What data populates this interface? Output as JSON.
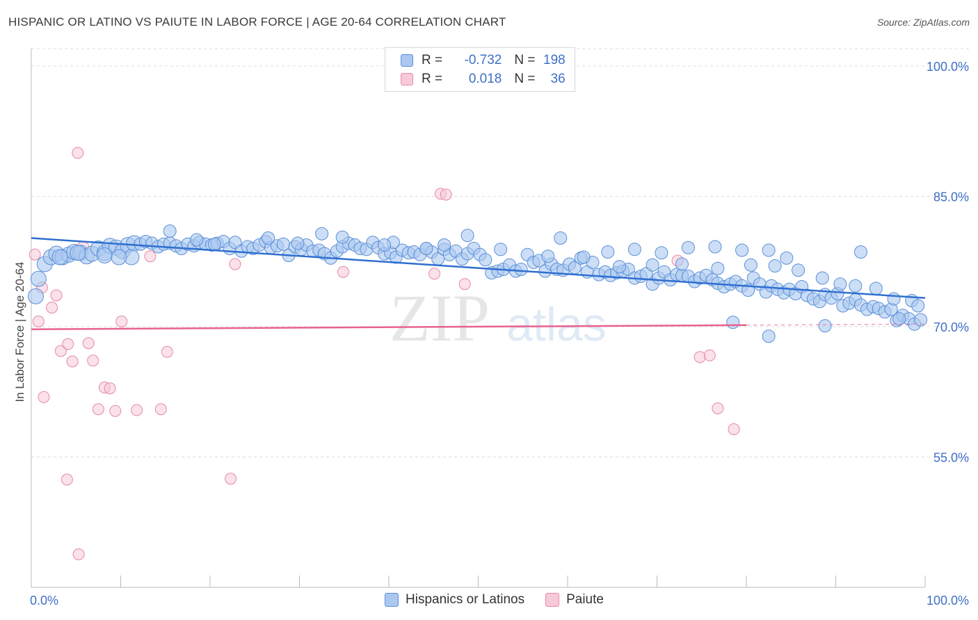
{
  "title": "HISPANIC OR LATINO VS PAIUTE IN LABOR FORCE | AGE 20-64 CORRELATION CHART",
  "source": "Source: ZipAtlas.com",
  "watermark": {
    "zip": "ZIP",
    "atlas": "atlas"
  },
  "legend": {
    "rows": [
      {
        "r_label": "R = ",
        "r_value": "-0.732",
        "n_label": "N = ",
        "n_value": "198"
      },
      {
        "r_label": "R = ",
        "r_value": "0.018",
        "n_label": "N = ",
        "n_value": "36"
      }
    ]
  },
  "colors": {
    "blue_fill": "#aac8f0",
    "blue_stroke": "#5b8fd8",
    "blue_line": "#2f6fd0",
    "pink_fill": "#f8c9d8",
    "pink_stroke": "#e48aa8",
    "pink_line": "#e8628e",
    "tick_label": "#3f6fc7",
    "grid": "#dddddd"
  },
  "chart_data": {
    "type": "scatter",
    "title": "HISPANIC OR LATINO VS PAIUTE IN LABOR FORCE | AGE 20-64 CORRELATION CHART",
    "xlabel": "",
    "ylabel": "In Labor Force | Age 20-64",
    "xlim": [
      0,
      100
    ],
    "ylim": [
      40,
      102
    ],
    "x_tick_labels": [
      "0.0%",
      "100.0%"
    ],
    "y_ticks": [
      55,
      70,
      85,
      100
    ],
    "y_tick_labels": [
      "55.0%",
      "70.0%",
      "85.0%",
      "100.0%"
    ],
    "series": [
      {
        "name": "Hispanics or Latinos",
        "r": -0.732,
        "n": 198,
        "trend": {
          "x": [
            0,
            100
          ],
          "y": [
            80.2,
            73.3
          ]
        },
        "points": [
          [
            0.5,
            73.5
          ],
          [
            0.8,
            75.5
          ],
          [
            1.5,
            77.2
          ],
          [
            2.2,
            78.0
          ],
          [
            2.8,
            78.4
          ],
          [
            3.5,
            78.0
          ],
          [
            4.2,
            78.3
          ],
          [
            4.8,
            78.6
          ],
          [
            5.5,
            78.5
          ],
          [
            6.2,
            78.1
          ],
          [
            6.8,
            78.4
          ],
          [
            7.5,
            79.0
          ],
          [
            8.2,
            78.5
          ],
          [
            8.8,
            79.3
          ],
          [
            9.5,
            79.1
          ],
          [
            10.2,
            78.7
          ],
          [
            10.8,
            79.4
          ],
          [
            11.5,
            79.6
          ],
          [
            12.2,
            79.5
          ],
          [
            12.8,
            79.8
          ],
          [
            13.5,
            79.6
          ],
          [
            14.2,
            79.2
          ],
          [
            14.8,
            79.5
          ],
          [
            15.5,
            79.6
          ],
          [
            16.2,
            79.3
          ],
          [
            16.8,
            79.0
          ],
          [
            17.5,
            79.5
          ],
          [
            18.2,
            79.3
          ],
          [
            18.8,
            79.7
          ],
          [
            19.5,
            79.5
          ],
          [
            20.2,
            79.4
          ],
          [
            20.8,
            79.6
          ],
          [
            21.5,
            79.8
          ],
          [
            22.2,
            79.0
          ],
          [
            22.8,
            79.7
          ],
          [
            23.5,
            78.7
          ],
          [
            24.2,
            79.2
          ],
          [
            24.8,
            79.0
          ],
          [
            25.5,
            79.4
          ],
          [
            26.2,
            79.8
          ],
          [
            26.8,
            79.1
          ],
          [
            27.5,
            79.3
          ],
          [
            28.2,
            79.5
          ],
          [
            28.8,
            78.2
          ],
          [
            29.5,
            79.2
          ],
          [
            30.2,
            78.9
          ],
          [
            30.8,
            79.4
          ],
          [
            31.5,
            78.7
          ],
          [
            32.2,
            78.8
          ],
          [
            32.8,
            78.4
          ],
          [
            33.5,
            77.9
          ],
          [
            34.2,
            78.7
          ],
          [
            34.8,
            79.2
          ],
          [
            35.5,
            79.6
          ],
          [
            36.2,
            79.4
          ],
          [
            36.8,
            79.0
          ],
          [
            37.5,
            78.9
          ],
          [
            38.2,
            79.7
          ],
          [
            38.8,
            79.1
          ],
          [
            39.5,
            78.4
          ],
          [
            40.2,
            78.5
          ],
          [
            40.8,
            78.0
          ],
          [
            41.5,
            78.8
          ],
          [
            42.2,
            78.5
          ],
          [
            42.8,
            78.6
          ],
          [
            43.5,
            78.3
          ],
          [
            44.2,
            79.0
          ],
          [
            44.8,
            78.6
          ],
          [
            45.5,
            77.8
          ],
          [
            46.2,
            78.9
          ],
          [
            46.8,
            78.3
          ],
          [
            47.5,
            78.7
          ],
          [
            48.2,
            77.8
          ],
          [
            48.8,
            78.4
          ],
          [
            49.5,
            79.0
          ],
          [
            50.2,
            78.3
          ],
          [
            50.8,
            77.7
          ],
          [
            51.5,
            76.2
          ],
          [
            52.2,
            76.4
          ],
          [
            52.8,
            76.6
          ],
          [
            53.5,
            77.1
          ],
          [
            54.2,
            76.4
          ],
          [
            54.8,
            76.6
          ],
          [
            55.5,
            78.3
          ],
          [
            56.2,
            77.4
          ],
          [
            56.8,
            77.6
          ],
          [
            57.5,
            76.4
          ],
          [
            58.2,
            77.2
          ],
          [
            58.8,
            76.6
          ],
          [
            59.5,
            76.5
          ],
          [
            60.2,
            77.2
          ],
          [
            60.8,
            76.8
          ],
          [
            61.5,
            77.9
          ],
          [
            62.2,
            76.3
          ],
          [
            62.8,
            77.4
          ],
          [
            63.5,
            76.0
          ],
          [
            64.2,
            76.3
          ],
          [
            64.8,
            75.9
          ],
          [
            65.5,
            76.2
          ],
          [
            66.2,
            76.4
          ],
          [
            66.8,
            76.6
          ],
          [
            67.5,
            75.6
          ],
          [
            68.2,
            75.8
          ],
          [
            68.8,
            76.1
          ],
          [
            69.5,
            74.9
          ],
          [
            70.2,
            75.6
          ],
          [
            70.8,
            76.3
          ],
          [
            71.5,
            75.4
          ],
          [
            72.2,
            76.0
          ],
          [
            72.8,
            75.9
          ],
          [
            73.5,
            75.8
          ],
          [
            74.2,
            75.2
          ],
          [
            74.8,
            75.6
          ],
          [
            75.5,
            75.9
          ],
          [
            76.2,
            75.4
          ],
          [
            76.8,
            75.0
          ],
          [
            77.5,
            74.6
          ],
          [
            78.2,
            74.9
          ],
          [
            78.8,
            75.2
          ],
          [
            79.5,
            74.7
          ],
          [
            80.2,
            74.2
          ],
          [
            80.8,
            75.6
          ],
          [
            81.5,
            74.9
          ],
          [
            82.2,
            74.0
          ],
          [
            82.8,
            74.7
          ],
          [
            83.5,
            74.3
          ],
          [
            84.2,
            73.9
          ],
          [
            84.8,
            74.3
          ],
          [
            85.5,
            73.8
          ],
          [
            86.2,
            74.6
          ],
          [
            86.8,
            73.6
          ],
          [
            87.5,
            73.2
          ],
          [
            88.2,
            72.9
          ],
          [
            88.8,
            73.7
          ],
          [
            89.5,
            73.3
          ],
          [
            90.2,
            73.8
          ],
          [
            90.8,
            72.4
          ],
          [
            91.5,
            72.7
          ],
          [
            92.2,
            73.1
          ],
          [
            92.8,
            72.5
          ],
          [
            93.5,
            72.0
          ],
          [
            94.2,
            72.3
          ],
          [
            94.8,
            72.1
          ],
          [
            95.5,
            71.7
          ],
          [
            96.2,
            72.0
          ],
          [
            96.8,
            70.7
          ],
          [
            97.5,
            71.3
          ],
          [
            98.2,
            70.9
          ],
          [
            98.8,
            70.3
          ],
          [
            99.5,
            70.8
          ],
          [
            15.5,
            81.0
          ],
          [
            32.5,
            80.7
          ],
          [
            48.8,
            80.5
          ],
          [
            59.2,
            80.2
          ],
          [
            64.5,
            78.6
          ],
          [
            67.5,
            78.9
          ],
          [
            70.5,
            78.5
          ],
          [
            73.5,
            79.1
          ],
          [
            76.5,
            79.2
          ],
          [
            79.5,
            78.8
          ],
          [
            82.5,
            78.8
          ],
          [
            84.5,
            77.9
          ],
          [
            92.8,
            78.6
          ],
          [
            11.2,
            78.0
          ],
          [
            18.5,
            80.0
          ],
          [
            26.5,
            80.2
          ],
          [
            34.8,
            80.3
          ],
          [
            40.5,
            79.7
          ],
          [
            46.2,
            79.4
          ],
          [
            52.5,
            78.9
          ],
          [
            57.8,
            78.1
          ],
          [
            61.8,
            78.0
          ],
          [
            65.8,
            76.9
          ],
          [
            69.5,
            77.1
          ],
          [
            72.8,
            77.2
          ],
          [
            76.8,
            76.7
          ],
          [
            80.5,
            77.1
          ],
          [
            83.2,
            77.0
          ],
          [
            85.8,
            76.5
          ],
          [
            88.5,
            75.6
          ],
          [
            90.5,
            74.9
          ],
          [
            92.2,
            74.7
          ],
          [
            94.5,
            74.4
          ],
          [
            96.5,
            73.2
          ],
          [
            98.5,
            73.0
          ],
          [
            99.2,
            72.4
          ],
          [
            97.1,
            70.9
          ],
          [
            88.8,
            70.1
          ],
          [
            78.5,
            70.5
          ],
          [
            82.5,
            68.9
          ],
          [
            3.2,
            78.0
          ],
          [
            5.2,
            78.5
          ],
          [
            8.2,
            78.2
          ],
          [
            9.8,
            78.0
          ],
          [
            20.5,
            79.5
          ],
          [
            29.8,
            79.6
          ],
          [
            39.5,
            79.4
          ],
          [
            44.2,
            79.0
          ]
        ]
      },
      {
        "name": "Paiute",
        "r": 0.018,
        "n": 36,
        "trend": {
          "x": [
            0,
            100
          ],
          "y": [
            69.7,
            70.3
          ]
        },
        "points": [
          [
            0.4,
            78.3
          ],
          [
            1.2,
            74.5
          ],
          [
            2.3,
            72.2
          ],
          [
            2.8,
            73.6
          ],
          [
            3.3,
            67.2
          ],
          [
            4.1,
            68.0
          ],
          [
            4.6,
            66.0
          ],
          [
            5.2,
            90.0
          ],
          [
            5.8,
            79.2
          ],
          [
            6.4,
            68.1
          ],
          [
            6.9,
            66.1
          ],
          [
            7.5,
            60.5
          ],
          [
            8.2,
            63.0
          ],
          [
            8.8,
            62.9
          ],
          [
            9.4,
            60.3
          ],
          [
            10.1,
            70.6
          ],
          [
            11.8,
            60.4
          ],
          [
            13.3,
            78.1
          ],
          [
            14.5,
            60.5
          ],
          [
            15.2,
            67.1
          ],
          [
            22.3,
            52.5
          ],
          [
            22.8,
            77.2
          ],
          [
            34.9,
            76.3
          ],
          [
            45.1,
            76.1
          ],
          [
            45.8,
            85.3
          ],
          [
            46.4,
            85.2
          ],
          [
            48.5,
            74.9
          ],
          [
            72.3,
            77.6
          ],
          [
            74.8,
            66.5
          ],
          [
            75.9,
            66.7
          ],
          [
            76.8,
            60.6
          ],
          [
            78.6,
            58.2
          ],
          [
            0.8,
            70.6
          ],
          [
            1.4,
            61.9
          ],
          [
            4.0,
            52.4
          ],
          [
            5.3,
            43.8
          ]
        ]
      }
    ]
  },
  "bottom_legend": {
    "series1": "Hispanics or Latinos",
    "series2": "Paiute"
  }
}
